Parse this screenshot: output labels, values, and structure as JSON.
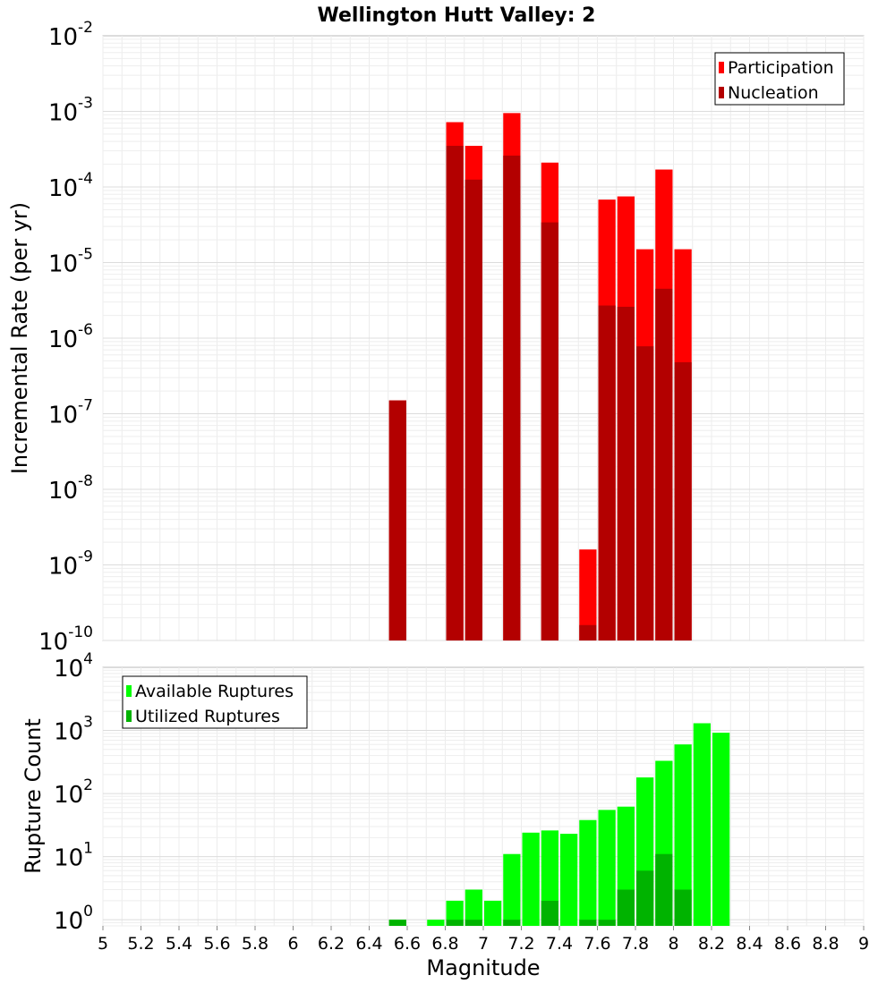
{
  "figure": {
    "title": "Wellington Hutt Valley: 2",
    "xlabel": "Magnitude"
  },
  "chart_data": [
    {
      "type": "bar",
      "ylabel": "Incremental Rate (per yr)",
      "yscale": "log",
      "xlim": [
        5,
        9
      ],
      "ylim": [
        1e-10,
        0.01
      ],
      "y_tick_exponents": [
        "-10",
        "-9",
        "-8",
        "-7",
        "-6",
        "-5",
        "-4",
        "-3",
        "-2"
      ],
      "legend": "top-right",
      "grid": true,
      "series": [
        {
          "name": "Participation",
          "color": "#ff0000",
          "x": [
            6.55,
            6.85,
            6.95,
            7.15,
            7.35,
            7.55,
            7.65,
            7.75,
            7.85,
            7.95,
            8.05
          ],
          "values": [
            1.5e-07,
            0.00072,
            0.00035,
            0.00095,
            0.00021,
            1.6e-09,
            6.8e-05,
            7.5e-05,
            1.5e-05,
            0.00017,
            1.5e-05
          ]
        },
        {
          "name": "Nucleation",
          "color": "#b30000",
          "x": [
            6.55,
            6.85,
            6.95,
            7.15,
            7.35,
            7.55,
            7.65,
            7.75,
            7.85,
            7.95,
            8.05
          ],
          "values": [
            1.5e-07,
            0.00035,
            0.000125,
            0.00026,
            3.4e-05,
            1.6e-10,
            2.7e-06,
            2.6e-06,
            7.8e-07,
            4.5e-06,
            4.8e-07
          ]
        }
      ]
    },
    {
      "type": "bar",
      "ylabel": "Rupture Count",
      "yscale": "log",
      "xlim": [
        5,
        9
      ],
      "ylim": [
        0.8,
        10000.0
      ],
      "y_tick_exponents": [
        "0",
        "1",
        "2",
        "3",
        "4"
      ],
      "legend": "top-left",
      "grid": true,
      "series": [
        {
          "name": "Available Ruptures",
          "color": "#00ff00",
          "x": [
            6.55,
            6.75,
            6.85,
            6.95,
            7.05,
            7.15,
            7.25,
            7.35,
            7.45,
            7.55,
            7.65,
            7.75,
            7.85,
            7.95,
            8.05,
            8.15,
            8.25
          ],
          "values": [
            1,
            1,
            2,
            3,
            2,
            11,
            24,
            26,
            23,
            38,
            55,
            62,
            180,
            330,
            600,
            1300,
            920
          ]
        },
        {
          "name": "Utilized Ruptures",
          "color": "#00b300",
          "x": [
            6.55,
            6.85,
            6.95,
            7.15,
            7.35,
            7.55,
            7.65,
            7.75,
            7.85,
            7.95,
            8.05
          ],
          "values": [
            1,
            1,
            1,
            1,
            2,
            1,
            1,
            3,
            6,
            11,
            3
          ]
        }
      ]
    }
  ],
  "x_ticks": [
    "5",
    "5.2",
    "5.4",
    "5.6",
    "5.8",
    "6",
    "6.2",
    "6.4",
    "6.6",
    "6.8",
    "7",
    "7.2",
    "7.4",
    "7.6",
    "7.8",
    "8",
    "8.2",
    "8.4",
    "8.6",
    "8.8",
    "9"
  ]
}
